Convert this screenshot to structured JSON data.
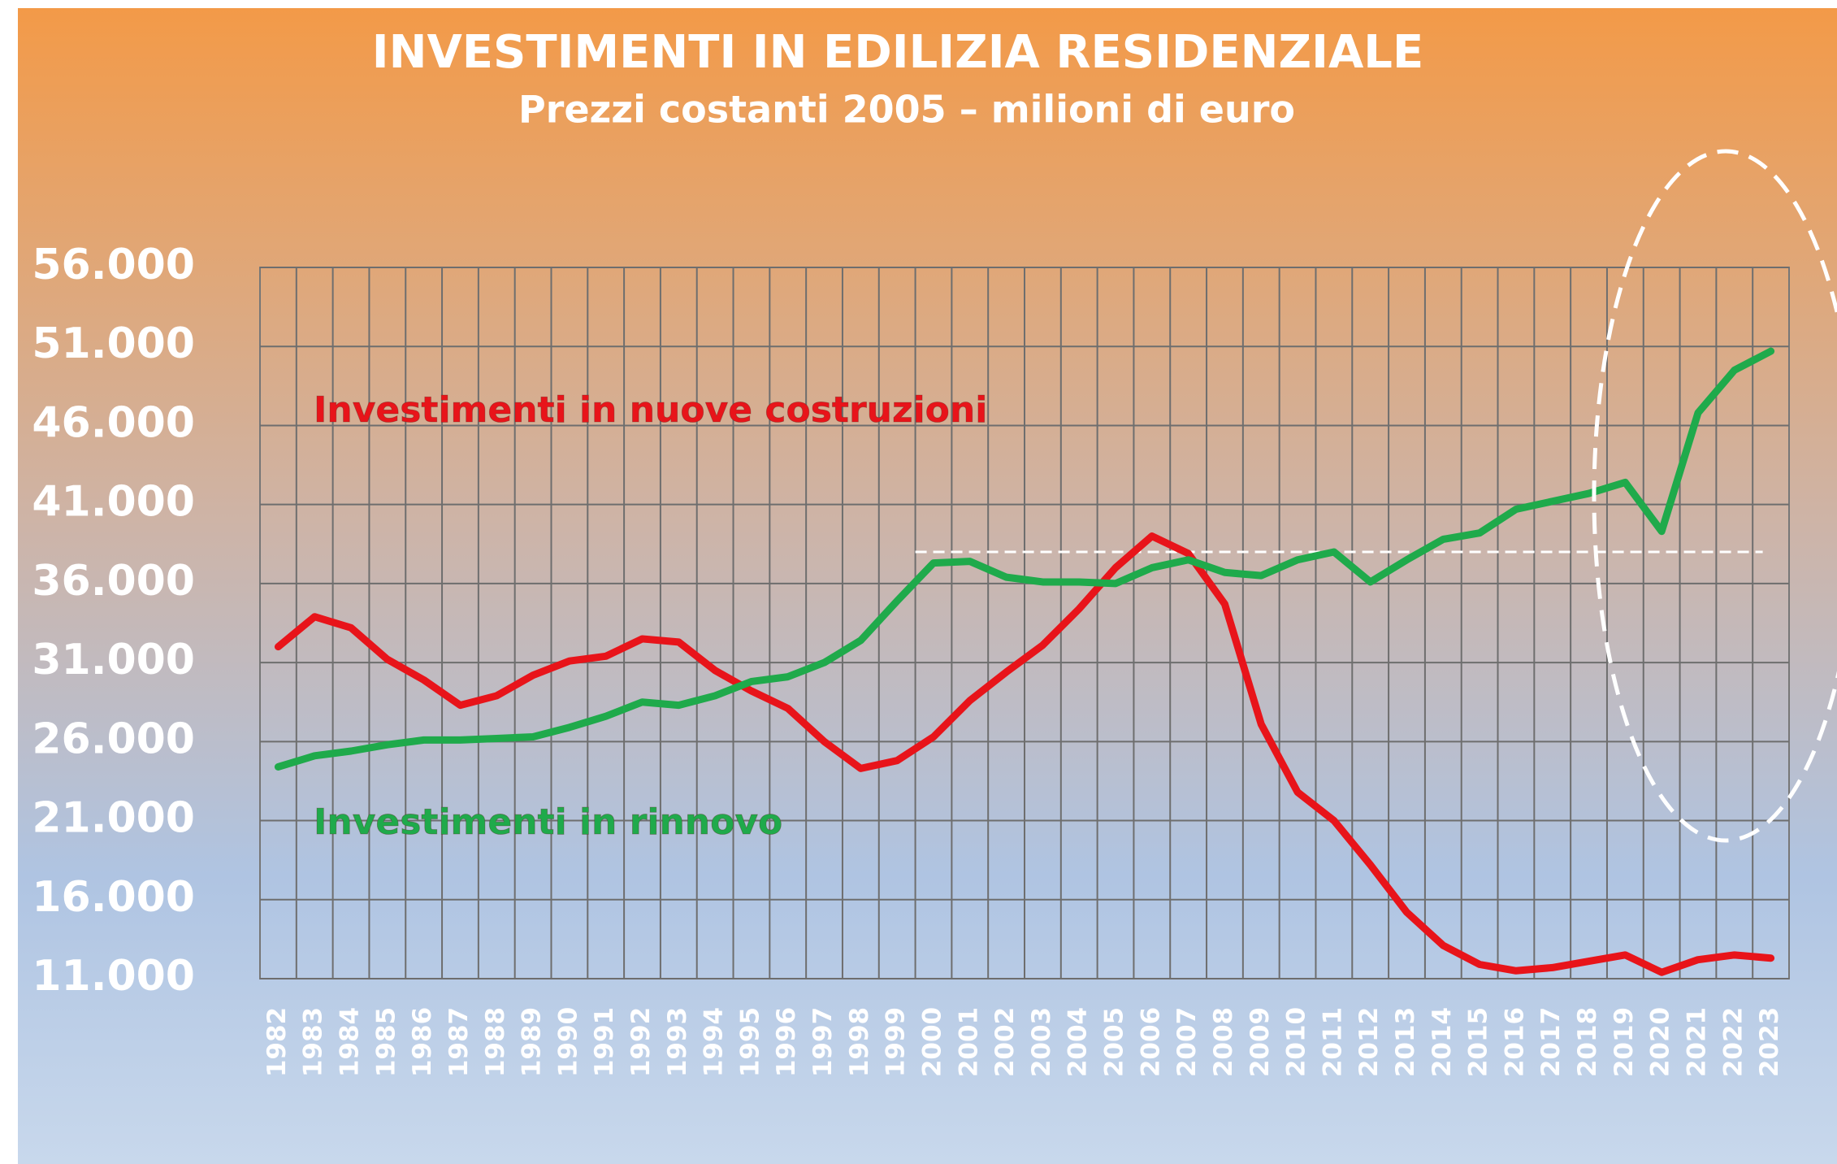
{
  "chart_data": {
    "type": "line",
    "title": "INVESTIMENTI IN EDILIZIA RESIDENZIALE",
    "subtitle": "Prezzi costanti 2005 – milioni di euro",
    "categories": [
      "1982",
      "1983",
      "1984",
      "1985",
      "1986",
      "1987",
      "1988",
      "1989",
      "1990",
      "1991",
      "1992",
      "1993",
      "1994",
      "1995",
      "1996",
      "1997",
      "1998",
      "1999",
      "2000",
      "2001",
      "2002",
      "2003",
      "2004",
      "2005",
      "2006",
      "2007",
      "2008",
      "2009",
      "2010",
      "2011",
      "2012",
      "2013",
      "2014",
      "2015",
      "2016",
      "2017",
      "2018",
      "2019",
      "2020",
      "2021",
      "2022",
      "2023"
    ],
    "series": [
      {
        "name": "Investimenti in nuove costruzioni",
        "color": "#e8141a",
        "values": [
          32000,
          33900,
          33200,
          31200,
          29900,
          28300,
          28900,
          30200,
          31100,
          31400,
          32500,
          32300,
          30500,
          29200,
          28100,
          26000,
          24300,
          24800,
          26300,
          28600,
          30400,
          32100,
          34400,
          37000,
          39000,
          37900,
          34700,
          27100,
          22800,
          21000,
          18200,
          15200,
          13100,
          11900,
          11500,
          11700,
          12100,
          12500,
          11400,
          12200,
          12500,
          12300
        ]
      },
      {
        "name": "Investimenti in rinnovo",
        "color": "#1faa4b",
        "values": [
          24400,
          25100,
          25400,
          25800,
          26100,
          26100,
          26200,
          26300,
          26900,
          27600,
          28500,
          28300,
          28900,
          29800,
          30100,
          31000,
          32400,
          34900,
          37300,
          37400,
          36400,
          36100,
          36100,
          36000,
          37000,
          37500,
          36700,
          36500,
          37500,
          38000,
          36100,
          37500,
          38800,
          39200,
          40700,
          41200,
          41700,
          42400,
          39300,
          46800,
          49500,
          50700
        ]
      }
    ],
    "ylim": [
      11000,
      56000
    ],
    "yticks": [
      {
        "value": 11000,
        "label": "11.000"
      },
      {
        "value": 16000,
        "label": "16.000"
      },
      {
        "value": 21000,
        "label": "21.000"
      },
      {
        "value": 26000,
        "label": "26.000"
      },
      {
        "value": 31000,
        "label": "31.000"
      },
      {
        "value": 36000,
        "label": "36.000"
      },
      {
        "value": 41000,
        "label": "41.000"
      },
      {
        "value": 46000,
        "label": "46.000"
      },
      {
        "value": 51000,
        "label": "51.000"
      },
      {
        "value": 56000,
        "label": "56.000"
      }
    ],
    "reference_line": 38000,
    "grid": true
  }
}
